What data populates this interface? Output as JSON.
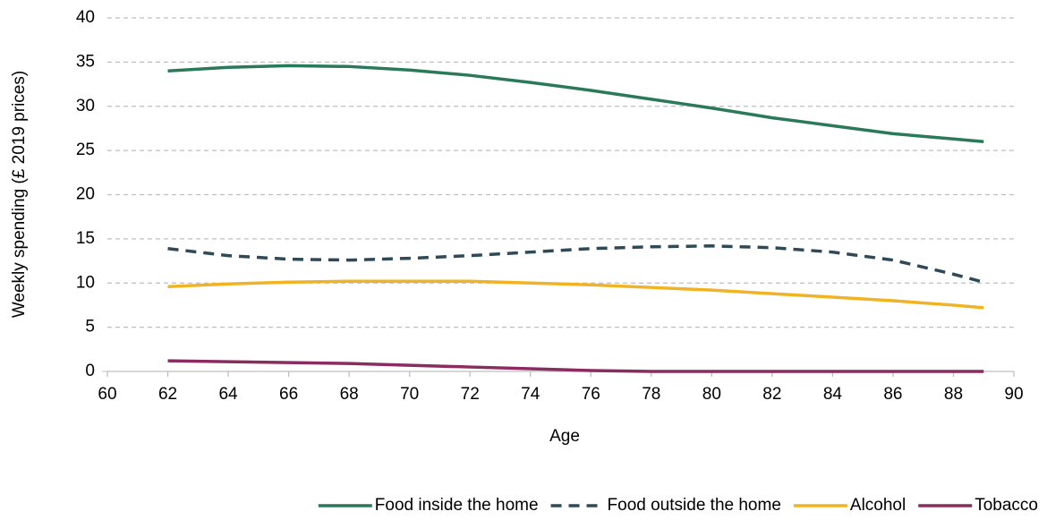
{
  "chart_data": {
    "type": "line",
    "x_label": "Age",
    "y_label": "Weekly spending (£ 2019 prices)",
    "x": [
      62,
      64,
      66,
      68,
      70,
      72,
      74,
      76,
      78,
      80,
      82,
      84,
      86,
      88,
      89
    ],
    "series": [
      {
        "name": "Food inside the home",
        "color": "#2a7a59",
        "dashed": false,
        "values": [
          34,
          34.4,
          34.6,
          34.5,
          34.1,
          33.5,
          32.7,
          31.8,
          30.8,
          29.8,
          28.7,
          27.8,
          26.9,
          26.3,
          26
        ]
      },
      {
        "name": "Food outside the home",
        "color": "#2f4a57",
        "dashed": true,
        "values": [
          13.9,
          13.1,
          12.7,
          12.6,
          12.8,
          13.1,
          13.5,
          13.9,
          14.1,
          14.2,
          14,
          13.5,
          12.6,
          11,
          10.1
        ]
      },
      {
        "name": "Alcohol",
        "color": "#f0b323",
        "dashed": false,
        "values": [
          9.6,
          9.9,
          10.1,
          10.2,
          10.2,
          10.2,
          10,
          9.8,
          9.5,
          9.2,
          8.8,
          8.4,
          8,
          7.5,
          7.2
        ]
      },
      {
        "name": "Tobacco",
        "color": "#8a2c5f",
        "dashed": false,
        "values": [
          1.2,
          1.1,
          1,
          0.9,
          0.7,
          0.5,
          0.3,
          0.1,
          0,
          0,
          0,
          0,
          0,
          0,
          0
        ]
      }
    ],
    "xlim": [
      60,
      90
    ],
    "xticks": [
      60,
      62,
      64,
      66,
      68,
      70,
      72,
      74,
      76,
      78,
      80,
      82,
      84,
      86,
      88,
      90
    ],
    "ylim": [
      0,
      40
    ],
    "yticks": [
      0,
      5,
      10,
      15,
      20,
      25,
      30,
      35,
      40
    ],
    "grid": true,
    "legend": "bottom"
  }
}
